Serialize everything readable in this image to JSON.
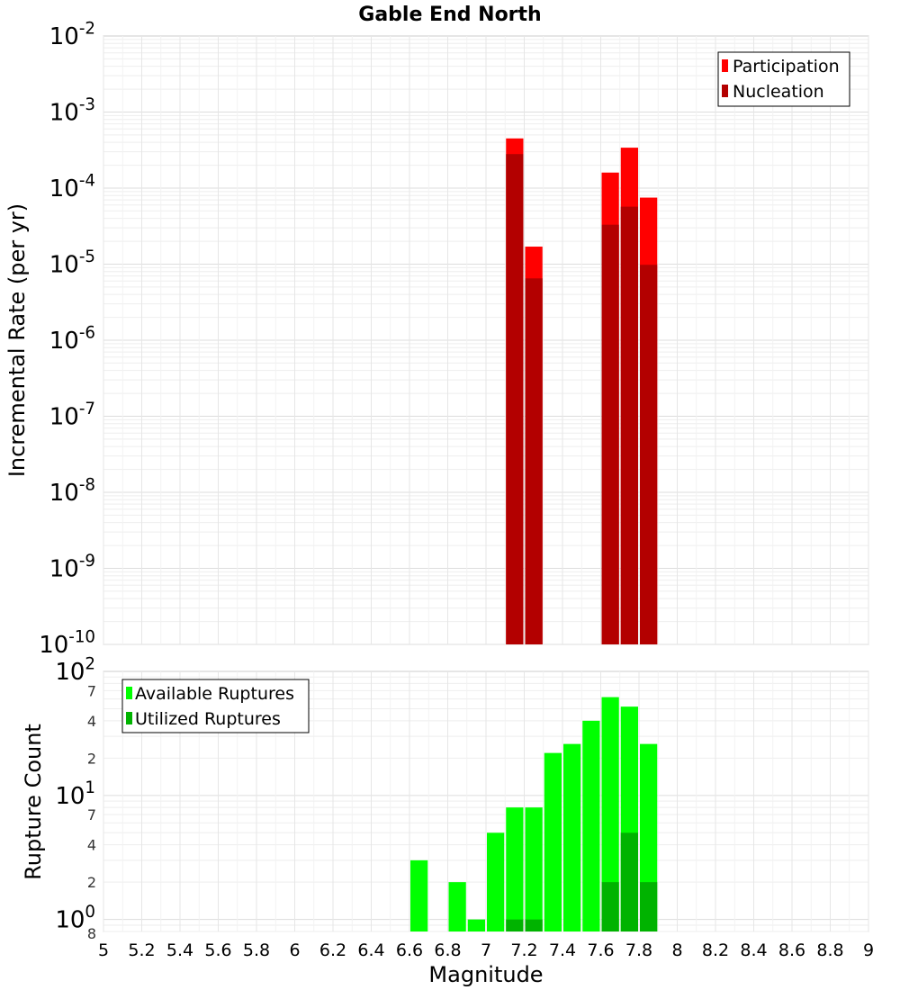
{
  "chart_data": [
    {
      "type": "bar",
      "title": "Gable End North",
      "ylabel": "Incremental Rate (per yr)",
      "xlabel": "",
      "yscale": "log",
      "xlim": [
        5,
        9
      ],
      "ylim": [
        1e-10,
        0.01
      ],
      "grid": true,
      "legend_position": "top-right",
      "y_ticks": [
        {
          "base": "10",
          "exp": "-2"
        },
        {
          "base": "10",
          "exp": "-3"
        },
        {
          "base": "10",
          "exp": "-4"
        },
        {
          "base": "10",
          "exp": "-5"
        },
        {
          "base": "10",
          "exp": "-6"
        },
        {
          "base": "10",
          "exp": "-7"
        },
        {
          "base": "10",
          "exp": "-8"
        },
        {
          "base": "10",
          "exp": "-9"
        },
        {
          "base": "10",
          "exp": "-10"
        }
      ],
      "series": [
        {
          "name": "Participation",
          "color": "#ff0000",
          "points": [
            {
              "x": 7.15,
              "y": 0.00045
            },
            {
              "x": 7.25,
              "y": 1.7e-05
            },
            {
              "x": 7.65,
              "y": 0.00016
            },
            {
              "x": 7.75,
              "y": 0.00034
            },
            {
              "x": 7.85,
              "y": 7.5e-05
            }
          ]
        },
        {
          "name": "Nucleation",
          "color": "#b30000",
          "points": [
            {
              "x": 7.15,
              "y": 0.00028
            },
            {
              "x": 7.25,
              "y": 6.5e-06
            },
            {
              "x": 7.65,
              "y": 3.3e-05
            },
            {
              "x": 7.75,
              "y": 5.7e-05
            },
            {
              "x": 7.85,
              "y": 9.8e-06
            }
          ]
        }
      ]
    },
    {
      "type": "bar",
      "title": "",
      "ylabel": "Rupture Count",
      "xlabel": "Magnitude",
      "yscale": "log",
      "xlim": [
        5,
        9
      ],
      "ylim": [
        0.8,
        100
      ],
      "grid": true,
      "legend_position": "top-left",
      "x_ticks": [
        "5",
        "5.2",
        "5.4",
        "5.6",
        "5.8",
        "6",
        "6.2",
        "6.4",
        "6.6",
        "6.8",
        "7",
        "7.2",
        "7.4",
        "7.6",
        "7.8",
        "8",
        "8.2",
        "8.4",
        "8.6",
        "8.8",
        "9"
      ],
      "y_major_ticks": [
        {
          "value": 100,
          "base": "10",
          "exp": "2"
        },
        {
          "value": 10,
          "base": "10",
          "exp": "1"
        },
        {
          "value": 1,
          "base": "10",
          "exp": "0"
        }
      ],
      "y_minor_ticks": [
        {
          "value": 70,
          "label": "7"
        },
        {
          "value": 40,
          "label": "4"
        },
        {
          "value": 20,
          "label": "2"
        },
        {
          "value": 7,
          "label": "7"
        },
        {
          "value": 4,
          "label": "4"
        },
        {
          "value": 2,
          "label": "2"
        },
        {
          "value": 0.8,
          "label": "8"
        }
      ],
      "series": [
        {
          "name": "Available Ruptures",
          "color": "#00ff00",
          "points": [
            {
              "x": 6.65,
              "y": 3
            },
            {
              "x": 6.85,
              "y": 2
            },
            {
              "x": 6.95,
              "y": 1
            },
            {
              "x": 7.05,
              "y": 5
            },
            {
              "x": 7.15,
              "y": 8
            },
            {
              "x": 7.25,
              "y": 8
            },
            {
              "x": 7.35,
              "y": 22
            },
            {
              "x": 7.45,
              "y": 26
            },
            {
              "x": 7.55,
              "y": 40
            },
            {
              "x": 7.65,
              "y": 62
            },
            {
              "x": 7.75,
              "y": 52
            },
            {
              "x": 7.85,
              "y": 26
            }
          ]
        },
        {
          "name": "Utilized Ruptures",
          "color": "#00b300",
          "points": [
            {
              "x": 7.15,
              "y": 1
            },
            {
              "x": 7.25,
              "y": 1
            },
            {
              "x": 7.65,
              "y": 2
            },
            {
              "x": 7.75,
              "y": 5
            },
            {
              "x": 7.85,
              "y": 2
            }
          ]
        }
      ]
    }
  ]
}
